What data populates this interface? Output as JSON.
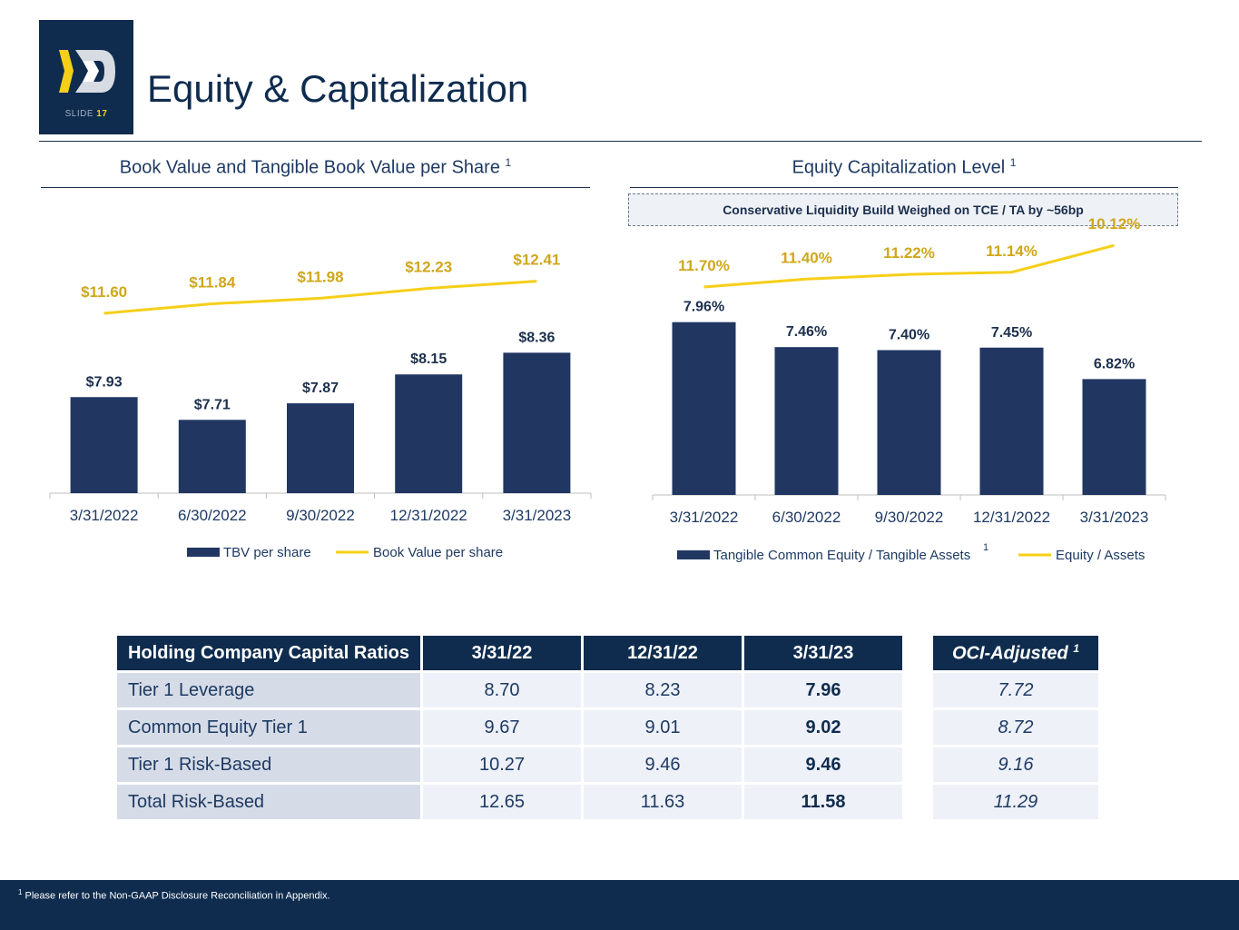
{
  "slide": {
    "label": "SLIDE",
    "number": "17"
  },
  "title": "Equity & Capitalization",
  "left_chart": {
    "subtitle": "Book Value and Tangible Book Value per Share",
    "sup": "1"
  },
  "right_chart": {
    "subtitle": "Equity Capitalization Level",
    "sup": "1",
    "callout": "Conservative Liquidity Build Weighed on TCE / TA by ~56bp"
  },
  "chart_data": [
    {
      "type": "bar",
      "title": "Book Value and Tangible Book Value per Share",
      "categories": [
        "3/31/2022",
        "6/30/2022",
        "9/30/2022",
        "12/31/2022",
        "3/31/2023"
      ],
      "series": [
        {
          "name": "TBV per share",
          "kind": "bar",
          "values": [
            7.93,
            7.71,
            7.87,
            8.15,
            8.36
          ],
          "labels": [
            "$7.93",
            "$7.71",
            "$7.87",
            "$8.15",
            "$8.36"
          ],
          "color": "#213762"
        },
        {
          "name": "Book Value per share",
          "kind": "line",
          "values": [
            11.6,
            11.84,
            11.98,
            12.23,
            12.41
          ],
          "labels": [
            "$11.60",
            "$11.84",
            "$11.98",
            "$12.23",
            "$12.41"
          ],
          "color": "#f6cf19"
        }
      ],
      "legend": [
        "TBV per share",
        "Book Value per share"
      ],
      "legend_position": "bottom"
    },
    {
      "type": "bar",
      "title": "Equity Capitalization Level",
      "categories": [
        "3/31/2022",
        "6/30/2022",
        "9/30/2022",
        "12/31/2022",
        "3/31/2023"
      ],
      "series": [
        {
          "name": "Tangible Common Equity / Tangible Assets",
          "kind": "bar",
          "values": [
            7.96,
            7.46,
            7.4,
            7.45,
            6.82
          ],
          "labels": [
            "7.96%",
            "7.46%",
            "7.40%",
            "7.45%",
            "6.82%"
          ],
          "color": "#213762"
        },
        {
          "name": "Equity / Assets",
          "kind": "line",
          "values": [
            11.7,
            11.4,
            11.22,
            11.14,
            10.12
          ],
          "labels": [
            "11.70%",
            "11.40%",
            "11.22%",
            "11.14%",
            "10.12%"
          ],
          "color": "#f6cf19"
        }
      ],
      "legend": [
        "Tangible Common Equity / Tangible Assets",
        "Equity / Assets"
      ],
      "legend_sup": "1",
      "legend_position": "bottom"
    }
  ],
  "capital_table": {
    "headers": [
      "Holding Company Capital Ratios",
      "3/31/22",
      "12/31/22",
      "3/31/23"
    ],
    "rows": [
      [
        "Tier 1 Leverage",
        "8.70",
        "8.23",
        "7.96"
      ],
      [
        "Common Equity Tier 1",
        "9.67",
        "9.01",
        "9.02"
      ],
      [
        "Tier 1 Risk-Based",
        "10.27",
        "9.46",
        "9.46"
      ],
      [
        "Total Risk-Based",
        "12.65",
        "11.63",
        "11.58"
      ]
    ]
  },
  "oci_table": {
    "header": "OCI-Adjusted",
    "sup": "1",
    "values": [
      "7.72",
      "8.72",
      "9.16",
      "11.29"
    ]
  },
  "footer": {
    "sup": "1",
    "note": "Please refer to the Non-GAAP Disclosure Reconciliation in Appendix."
  },
  "colors": {
    "navy": "#0f2c4e",
    "bar": "#213762",
    "gold": "#f6cf19",
    "gold_text": "#cfa71b"
  }
}
